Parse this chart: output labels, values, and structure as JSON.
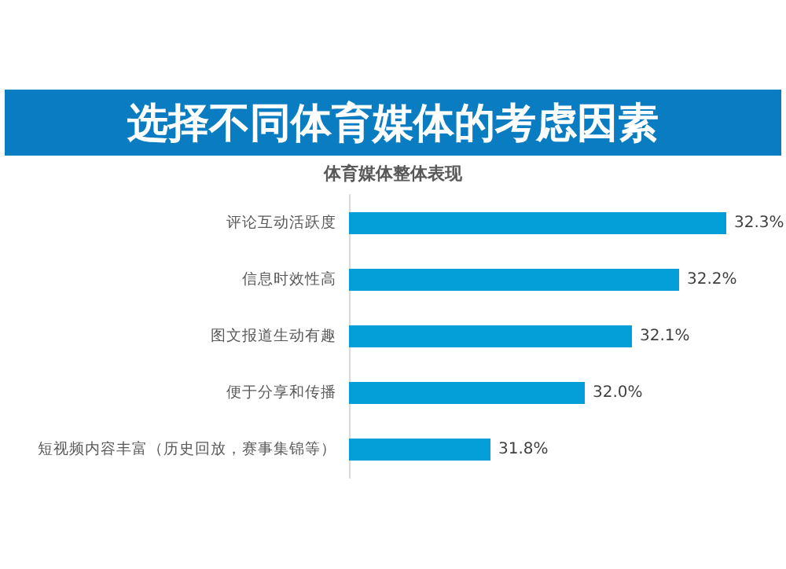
{
  "chart_data": {
    "type": "bar",
    "orientation": "horizontal",
    "title": "选择不同体育媒体的考虑因素",
    "subtitle": "体育媒体整体表现",
    "categories": [
      "评论互动活跃度",
      "信息时效性高",
      "图文报道生动有趣",
      "便于分享和传播",
      "短视频内容丰富（历史回放，赛事集锦等）"
    ],
    "values": [
      32.3,
      32.2,
      32.1,
      32.0,
      31.8
    ],
    "color": "#049fd9",
    "value_labels": [
      "32.3%",
      "32.2%",
      "32.1%",
      "32.0%",
      "31.8%"
    ],
    "xlim": [
      31.5,
      32.3
    ],
    "tick_labels": "y"
  }
}
